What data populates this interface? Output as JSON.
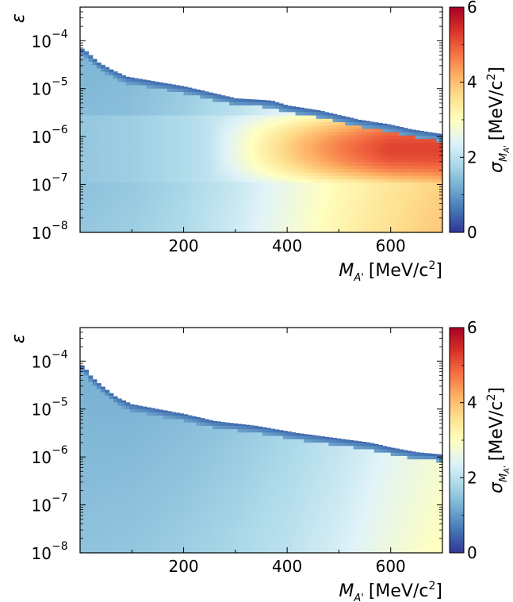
{
  "chart_data": [
    {
      "type": "heatmap",
      "panel": "top",
      "title": "",
      "xlabel": "M_A' [MeV/c^2]",
      "ylabel": "ε",
      "colorbar_label": "σ_M_A' [MeV/c^2]",
      "x_label_text": {
        "var": "M",
        "sub": "A'",
        "unit": "[MeV/c",
        "exp": "2",
        "close": "]"
      },
      "y_label_text": "ε",
      "cbar_label_text": {
        "var": "σ",
        "sub1": "M",
        "sub2": "A'",
        "unit": "[MeV/c",
        "exp": "2",
        "close": "]"
      },
      "xlim": [
        0,
        700
      ],
      "ylim_log10": [
        -8,
        -3.3
      ],
      "x_ticks": [
        200,
        400,
        600
      ],
      "x_tick_labels": [
        "200",
        "400",
        "600"
      ],
      "y_ticks_log10": [
        -8,
        -7,
        -6,
        -5,
        -4
      ],
      "y_tick_labels": [
        "10",
        "10",
        "10",
        "10",
        "10"
      ],
      "y_tick_exponents": [
        "−8",
        "−7",
        "−6",
        "−5",
        "−4"
      ],
      "colorbar_range": [
        0,
        6
      ],
      "colorbar_ticks": [
        0,
        2,
        4,
        6
      ],
      "colorbar_tick_labels": [
        "0",
        "2",
        "4",
        "6"
      ],
      "colormap": [
        "#313695",
        "#4575b4",
        "#74add1",
        "#abd9e9",
        "#e0f3f8",
        "#ffffbf",
        "#fee090",
        "#fdae61",
        "#f46d43",
        "#d73027",
        "#a50026"
      ],
      "boundary_x": [
        0,
        10,
        20,
        35,
        60,
        90,
        145,
        200,
        260,
        300,
        370,
        400,
        460,
        500,
        540,
        600,
        640,
        670,
        700
      ],
      "boundary_log10_eps": [
        -4.15,
        -4.2,
        -4.3,
        -4.45,
        -4.6,
        -4.75,
        -4.85,
        -4.95,
        -5.1,
        -5.2,
        -5.25,
        -5.35,
        -5.45,
        -5.55,
        -5.65,
        -5.75,
        -5.85,
        -5.9,
        -5.95
      ],
      "edge_sigma": 0.5,
      "band_log10_eps": [
        -6.7,
        -5.8
      ],
      "band_sigma": 5.2,
      "mass_sigma_at_floor": [
        [
          0,
          1.55
        ],
        [
          100,
          1.65
        ],
        [
          200,
          1.85
        ],
        [
          300,
          2.2
        ],
        [
          400,
          2.7
        ],
        [
          500,
          3.2
        ],
        [
          600,
          3.6
        ],
        [
          700,
          3.9
        ]
      ]
    },
    {
      "type": "heatmap",
      "panel": "bottom",
      "title": "",
      "xlabel": "M_A' [MeV/c^2]",
      "ylabel": "ε",
      "colorbar_label": "σ_M_A' [MeV/c^2]",
      "x_label_text": {
        "var": "M",
        "sub": "A'",
        "unit": "[MeV/c",
        "exp": "2",
        "close": "]"
      },
      "y_label_text": "ε",
      "cbar_label_text": {
        "var": "σ",
        "sub1": "M",
        "sub2": "A'",
        "unit": "[MeV/c",
        "exp": "2",
        "close": "]"
      },
      "xlim": [
        0,
        700
      ],
      "ylim_log10": [
        -8,
        -3.3
      ],
      "x_ticks": [
        200,
        400,
        600
      ],
      "x_tick_labels": [
        "200",
        "400",
        "600"
      ],
      "y_ticks_log10": [
        -8,
        -7,
        -6,
        -5,
        -4
      ],
      "y_tick_labels": [
        "10",
        "10",
        "10",
        "10",
        "10"
      ],
      "y_tick_exponents": [
        "−8",
        "−7",
        "−6",
        "−5",
        "−4"
      ],
      "colorbar_range": [
        0,
        6
      ],
      "colorbar_ticks": [
        0,
        2,
        4,
        6
      ],
      "colorbar_tick_labels": [
        "0",
        "2",
        "4",
        "6"
      ],
      "colormap": [
        "#313695",
        "#4575b4",
        "#74add1",
        "#abd9e9",
        "#e0f3f8",
        "#ffffbf",
        "#fee090",
        "#fdae61",
        "#f46d43",
        "#d73027",
        "#a50026"
      ],
      "boundary_x": [
        0,
        10,
        20,
        40,
        70,
        100,
        150,
        200,
        260,
        340,
        420,
        490,
        560,
        600,
        650,
        700
      ],
      "boundary_log10_eps": [
        -4.05,
        -4.15,
        -4.3,
        -4.5,
        -4.75,
        -4.9,
        -5.0,
        -5.1,
        -5.25,
        -5.35,
        -5.5,
        -5.6,
        -5.7,
        -5.8,
        -5.9,
        -5.95
      ],
      "edge_sigma": 0.5,
      "band_log10_eps": null,
      "band_sigma": null,
      "mass_sigma_at_floor": [
        [
          0,
          1.5
        ],
        [
          100,
          1.55
        ],
        [
          200,
          1.65
        ],
        [
          300,
          1.8
        ],
        [
          400,
          2.0
        ],
        [
          500,
          2.3
        ],
        [
          600,
          2.7
        ],
        [
          700,
          3.05
        ]
      ]
    }
  ]
}
